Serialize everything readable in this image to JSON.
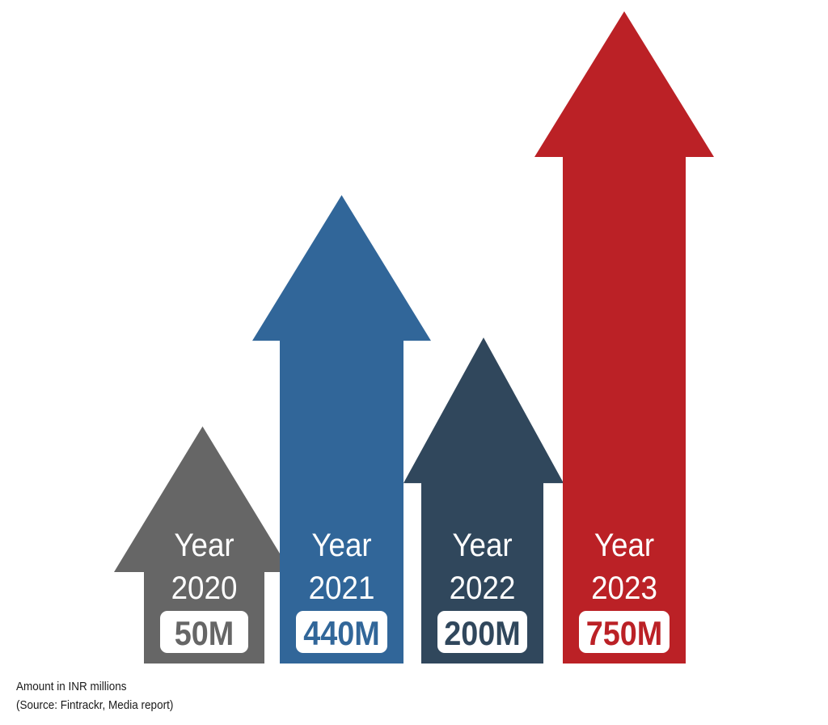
{
  "chart_data": {
    "type": "bar",
    "style": "arrow",
    "categories": [
      "2020",
      "2021",
      "2022",
      "2023"
    ],
    "label_prefix": "Year",
    "values": [
      50,
      440,
      200,
      750
    ],
    "value_labels": [
      "50M",
      "440M",
      "200M",
      "750M"
    ],
    "units": "INR millions",
    "colors": [
      "#666666",
      "#316699",
      "#30475c",
      "#bb2126"
    ],
    "title": "",
    "xlabel": "",
    "ylabel": "",
    "grid": false,
    "legend": "none"
  },
  "notes": {
    "units": "Amount in INR millions",
    "source": "(Source: Fintrackr, Media report)"
  }
}
